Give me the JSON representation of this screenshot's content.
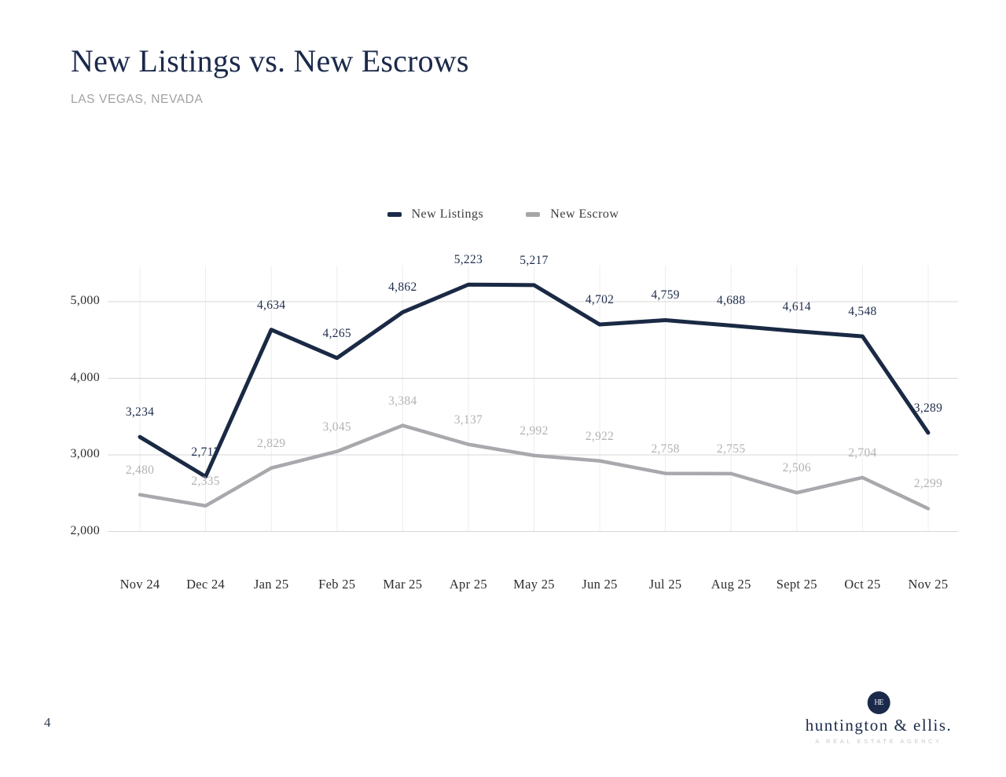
{
  "page": {
    "number": "4"
  },
  "header": {
    "title": "New Listings vs. New Escrows",
    "subtitle": "LAS VEGAS, NEVADA"
  },
  "legend": {
    "items": [
      {
        "label": "New Listings",
        "color": "#1b2a4a"
      },
      {
        "label": "New Escrow",
        "color": "#a6a6a9"
      }
    ]
  },
  "chart_data": {
    "type": "line",
    "title": "New Listings vs. New Escrows",
    "subtitle": "LAS VEGAS, NEVADA",
    "categories": [
      "Nov 24",
      "Dec 24",
      "Jan 25",
      "Feb 25",
      "Mar 25",
      "Apr 25",
      "May 25",
      "Jun 25",
      "Jul 25",
      "Aug 25",
      "Sept 25",
      "Oct 25",
      "Nov 25"
    ],
    "series": [
      {
        "name": "New Listings",
        "color": "#1a2944",
        "stroke_width": 5,
        "values": [
          3234,
          2717,
          4634,
          4265,
          4862,
          5223,
          5217,
          4702,
          4759,
          4688,
          4614,
          4548,
          3289
        ]
      },
      {
        "name": "New Escrow",
        "color": "#a8a8ad",
        "stroke_width": 4.5,
        "values": [
          2480,
          2335,
          2829,
          3045,
          3384,
          3137,
          2992,
          2922,
          2758,
          2755,
          2506,
          2704,
          2299
        ]
      }
    ],
    "yticks": [
      5000,
      4000,
      3000,
      2000
    ],
    "ylim": [
      2000,
      5400
    ],
    "grid": "horizontal light + faint vertical per category",
    "legend_position": "top-center",
    "data_labels": true,
    "colors": {
      "grid_horizontal": "#d7d7d7",
      "grid_vertical": "#ededed",
      "label_series_0": "#1e2c4c",
      "label_series_1": "#b2b2b2"
    }
  },
  "footer": {
    "logo_monogram": "HE",
    "logo_name": "huntington & ellis.",
    "logo_tagline": "A REAL ESTATE AGENCY"
  }
}
